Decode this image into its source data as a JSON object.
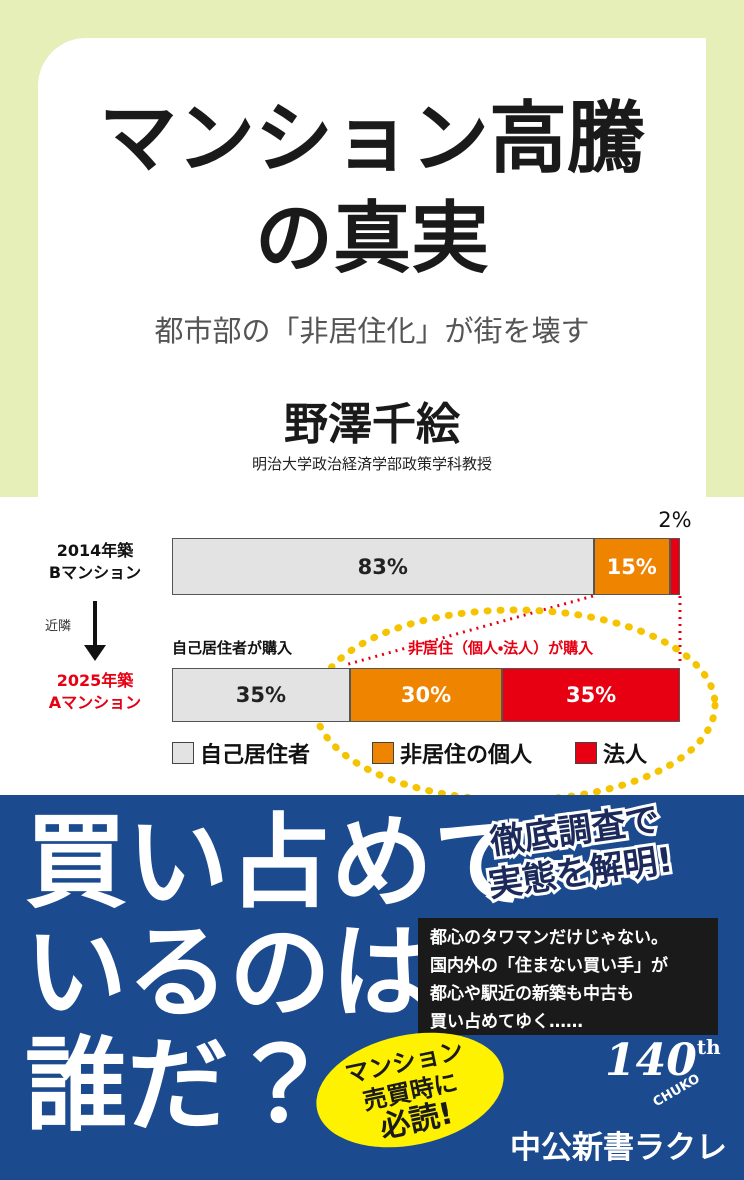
{
  "cover": {
    "title": [
      "マンション高騰",
      "の真実"
    ],
    "subtitle": "都市部の「非居住化」が街を壊す",
    "author": "野澤千絵",
    "affiliation": "明治大学政治経済学部政策学科教授",
    "catchphrase": [
      "買い占めて",
      "いるのは",
      "誰だ？"
    ],
    "badge": [
      "徹底調査で",
      "実態を解明!"
    ],
    "blurb": [
      "都心のタワマンだけじゃない。",
      "国内外の「住まない買い手」が",
      "都心や駅近の新築も中古も",
      "買い占めてゆく……"
    ],
    "bubble": [
      "マンション",
      "売買時に",
      "必読!"
    ],
    "anniversary": [
      "140",
      "th",
      "CHUKO"
    ],
    "publisher": "中公新書ラクレ"
  },
  "chart_data": {
    "type": "bar",
    "orientation": "horizontal",
    "stacked": true,
    "categories": [
      "2014年築\nBマンション",
      "2025年築\nAマンション"
    ],
    "series": [
      {
        "name": "自己居住者",
        "color": "#e3e3e3",
        "values": [
          83,
          35
        ],
        "value_labels": [
          "83%",
          "35%"
        ]
      },
      {
        "name": "非居住の個人",
        "color": "#ee8400",
        "values": [
          15,
          30
        ],
        "value_labels": [
          "15%",
          "30%"
        ]
      },
      {
        "name": "法人",
        "color": "#e60012",
        "values": [
          2,
          35
        ],
        "value_labels": [
          "2%",
          "35%"
        ]
      }
    ],
    "annotations": [
      "近隣",
      "自己居住者が購入",
      "非居住（個人・法人）が購入"
    ]
  }
}
